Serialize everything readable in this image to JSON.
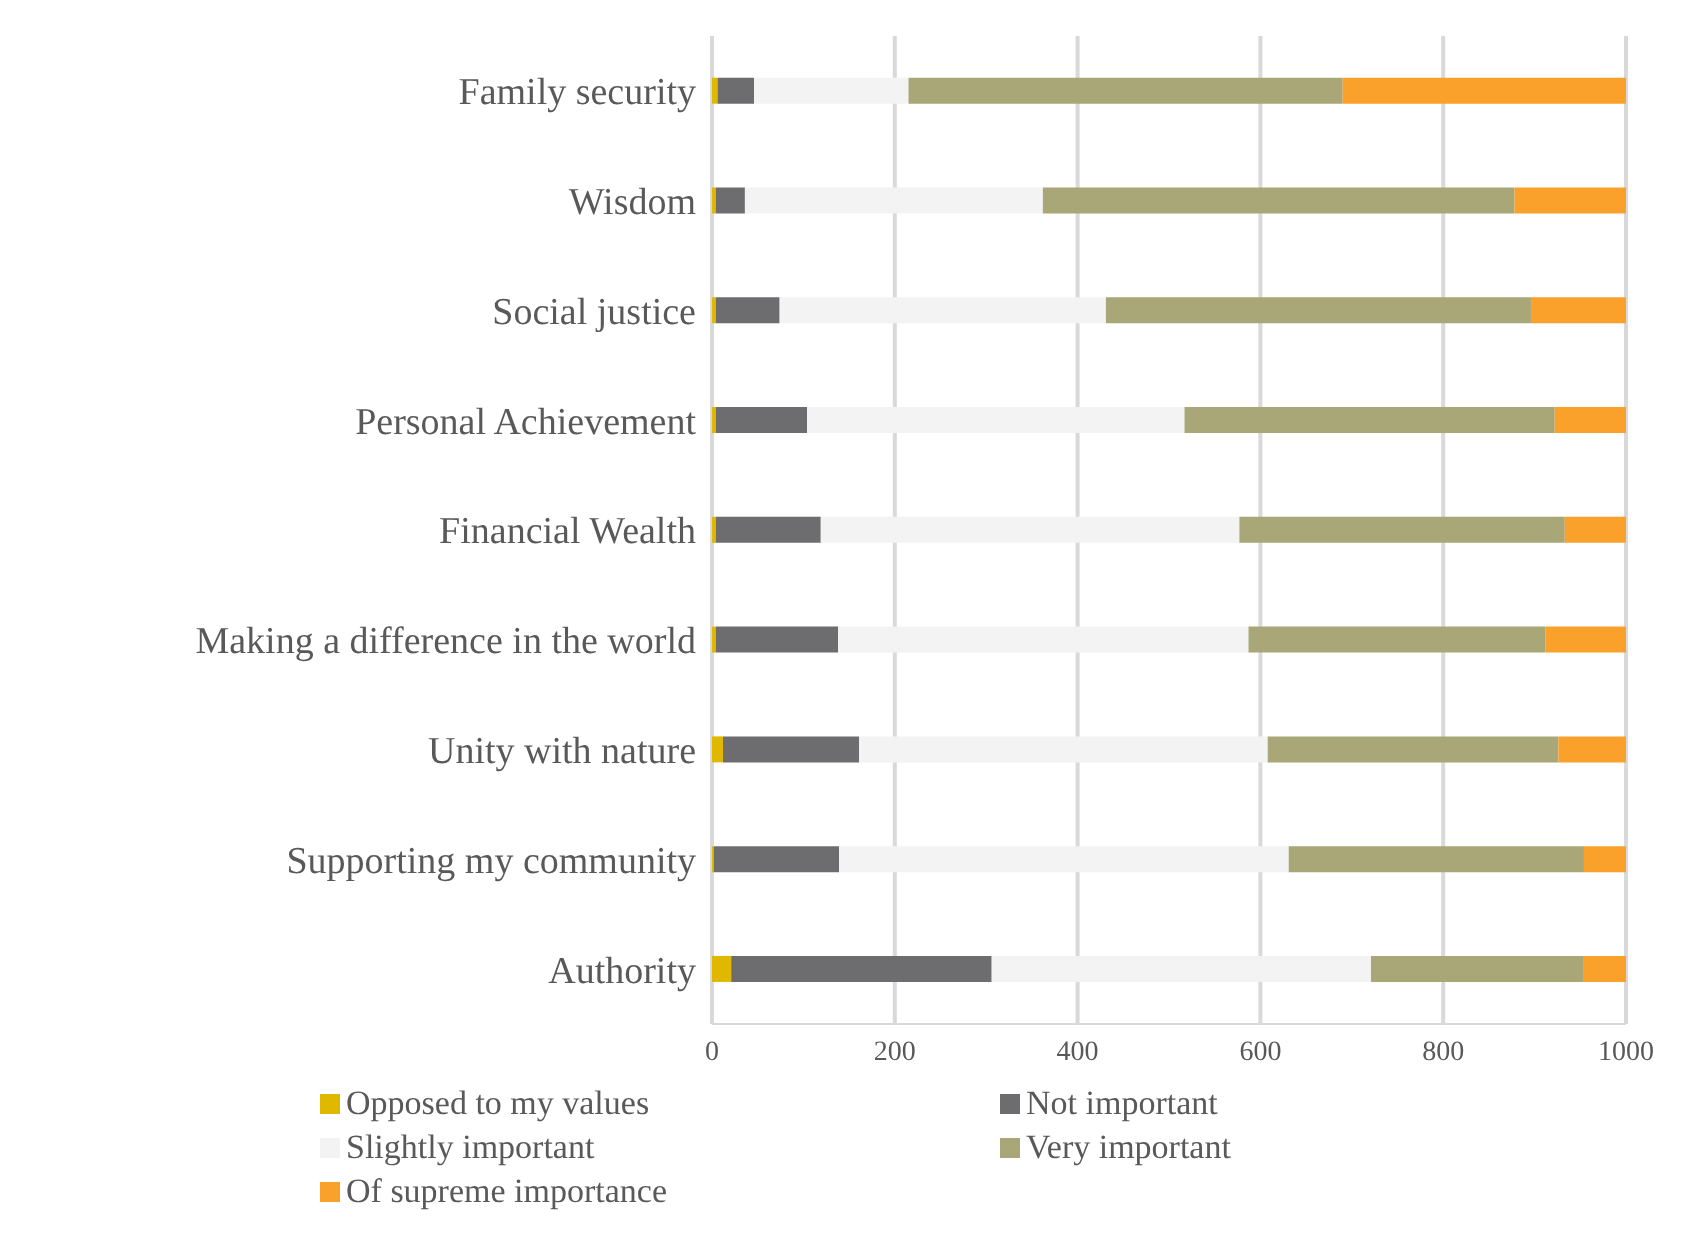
{
  "chart_data": {
    "type": "bar",
    "orientation": "horizontal",
    "stacked": true,
    "categories": [
      "Family security",
      "Wisdom",
      "Social justice",
      "Personal Achievement",
      "Financial Wealth",
      "Making a difference in the world",
      "Unity with nature",
      "Supporting my community",
      "Authority"
    ],
    "series": [
      {
        "name": "Opposed to my values",
        "color": "#e0b800",
        "values": [
          6,
          4,
          4,
          4,
          4,
          4,
          12,
          2,
          21
        ]
      },
      {
        "name": "Not important",
        "color": "#6d6d6f",
        "values": [
          40,
          32,
          70,
          100,
          115,
          134,
          149,
          137,
          285
        ]
      },
      {
        "name": "Slightly important",
        "color": "#f2f3f2",
        "values": [
          169,
          326,
          357,
          413,
          458,
          449,
          447,
          492,
          415
        ]
      },
      {
        "name": "Very important",
        "color": "#a9a777",
        "values": [
          475,
          516,
          465,
          405,
          356,
          325,
          318,
          323,
          232
        ]
      },
      {
        "name": "Of supreme importance",
        "color": "#f9a12a",
        "values": [
          310,
          122,
          104,
          78,
          67,
          88,
          74,
          46,
          47
        ]
      }
    ],
    "xlim": [
      0,
      1000
    ],
    "xticks": [
      0,
      200,
      400,
      600,
      800,
      1000
    ],
    "grid": "x",
    "legend": "bottom"
  }
}
